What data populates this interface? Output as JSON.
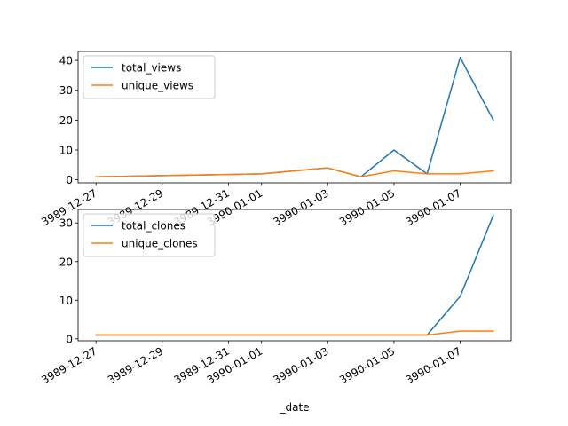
{
  "chart_data": [
    {
      "type": "line",
      "x": [
        "3989-12-27",
        "3989-12-28",
        "3989-12-29",
        "3989-12-30",
        "3989-12-31",
        "3990-01-01",
        "3990-01-02",
        "3990-01-03",
        "3990-01-04",
        "3990-01-05",
        "3990-01-06",
        "3990-01-07",
        "3990-01-08"
      ],
      "xticks": [
        {
          "date": "3989-12-27",
          "label": "3989-12-27"
        },
        {
          "date": "3989-12-29",
          "label": "3989-12-29"
        },
        {
          "date": "3989-12-31",
          "label": "3989-12-31"
        },
        {
          "date": "3990-01-01",
          "label": "3990-01-01"
        },
        {
          "date": "3990-01-03",
          "label": "3990-01-03"
        },
        {
          "date": "3990-01-05",
          "label": "3990-01-05"
        },
        {
          "date": "3990-01-07",
          "label": "3990-01-07"
        }
      ],
      "series": [
        {
          "name": "total_views",
          "color": "#1f77b4",
          "values": [
            1,
            1.2,
            1.4,
            1.6,
            1.8,
            2,
            3,
            4,
            1,
            10,
            2,
            41,
            20
          ]
        },
        {
          "name": "unique_views",
          "color": "#ff7f0e",
          "values": [
            1,
            1.2,
            1.4,
            1.6,
            1.8,
            2,
            3,
            4,
            1,
            3,
            2,
            2,
            3
          ]
        }
      ],
      "yticks": [
        0,
        10,
        20,
        30,
        40
      ],
      "ylim": [
        -1,
        43
      ],
      "legend": "top-left",
      "xlabel": "",
      "ylabel": "",
      "grid": false
    },
    {
      "type": "line",
      "x": [
        "3989-12-27",
        "3989-12-28",
        "3989-12-29",
        "3989-12-30",
        "3989-12-31",
        "3990-01-01",
        "3990-01-02",
        "3990-01-03",
        "3990-01-04",
        "3990-01-05",
        "3990-01-06",
        "3990-01-07",
        "3990-01-08"
      ],
      "xticks": [
        {
          "date": "3989-12-27",
          "label": "3989-12-27"
        },
        {
          "date": "3989-12-29",
          "label": "3989-12-29"
        },
        {
          "date": "3989-12-31",
          "label": "3989-12-31"
        },
        {
          "date": "3990-01-01",
          "label": "3990-01-01"
        },
        {
          "date": "3990-01-03",
          "label": "3990-01-03"
        },
        {
          "date": "3990-01-05",
          "label": "3990-01-05"
        },
        {
          "date": "3990-01-07",
          "label": "3990-01-07"
        }
      ],
      "series": [
        {
          "name": "total_clones",
          "color": "#1f77b4",
          "values": [
            1,
            1,
            1,
            1,
            1,
            1,
            1,
            1,
            1,
            1,
            1,
            11,
            32
          ]
        },
        {
          "name": "unique_clones",
          "color": "#ff7f0e",
          "values": [
            1,
            1,
            1,
            1,
            1,
            1,
            1,
            1,
            1,
            1,
            1,
            2,
            2
          ]
        }
      ],
      "yticks": [
        0,
        10,
        20,
        30
      ],
      "ylim": [
        -0.5,
        33.5
      ],
      "legend": "top-left",
      "xlabel": "_date",
      "ylabel": "",
      "grid": false
    }
  ]
}
